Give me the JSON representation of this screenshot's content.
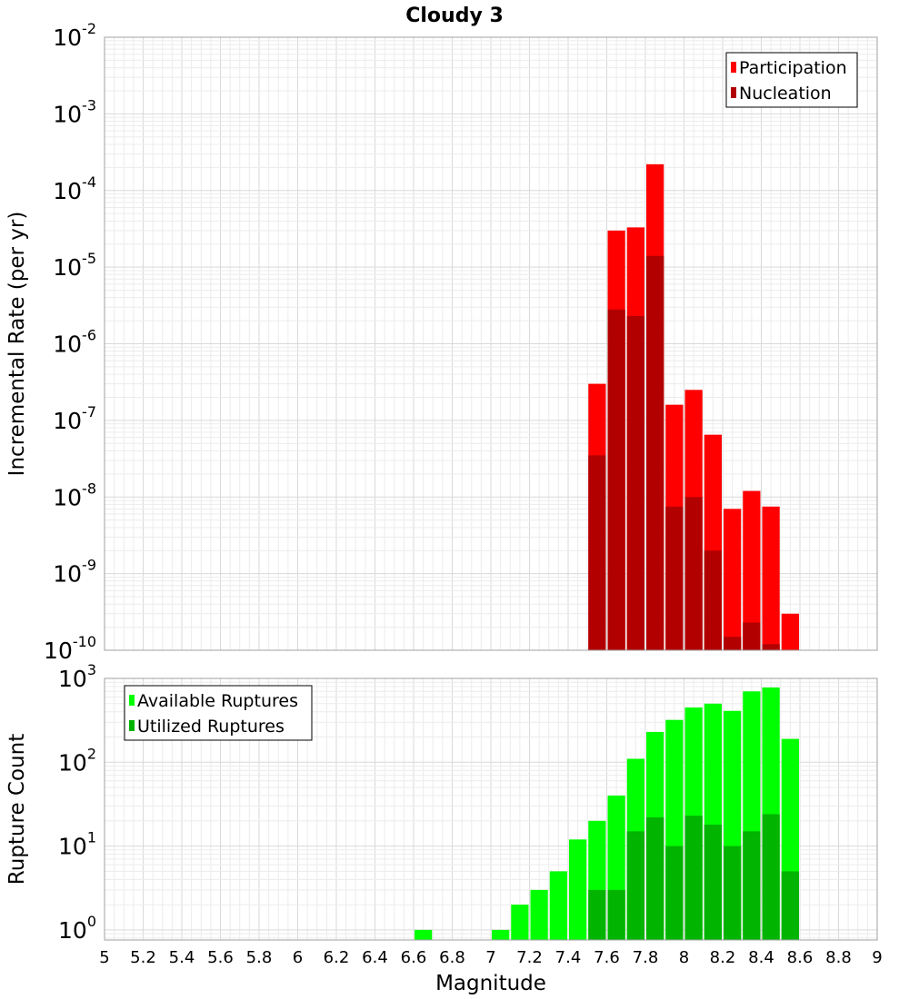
{
  "chart_data": {
    "title": "Cloudy 3",
    "xlabel": "Magnitude",
    "xlim": [
      5,
      9
    ],
    "xticks": [
      "5",
      "5.2",
      "5.4",
      "5.6",
      "5.8",
      "6",
      "6.2",
      "6.4",
      "6.6",
      "6.8",
      "7",
      "7.2",
      "7.4",
      "7.6",
      "7.8",
      "8",
      "8.2",
      "8.4",
      "8.6",
      "8.8",
      "9"
    ],
    "bin_width": 0.1,
    "grid": true,
    "panels": [
      {
        "type": "bar",
        "scale": "log",
        "ylabel": "Incremental Rate (per yr)",
        "ylim_exp": [
          -10,
          -2
        ],
        "yticks": [
          {
            "base": "10",
            "exp": "-2"
          },
          {
            "base": "10",
            "exp": "-3"
          },
          {
            "base": "10",
            "exp": "-4"
          },
          {
            "base": "10",
            "exp": "-5"
          },
          {
            "base": "10",
            "exp": "-6"
          },
          {
            "base": "10",
            "exp": "-7"
          },
          {
            "base": "10",
            "exp": "-8"
          },
          {
            "base": "10",
            "exp": "-9"
          },
          {
            "base": "10",
            "exp": "-10"
          }
        ],
        "legend_position": "top-right",
        "x": [
          7.55,
          7.65,
          7.75,
          7.85,
          7.95,
          8.05,
          8.15,
          8.25,
          8.35,
          8.45,
          8.55
        ],
        "series": [
          {
            "name": "Participation",
            "color": "#ff0000",
            "values": [
              3e-07,
              3e-05,
              3.3e-05,
              0.00022,
              1.6e-07,
              2.5e-07,
              6.5e-08,
              7e-09,
              1.2e-08,
              7.5e-09,
              3e-10
            ]
          },
          {
            "name": "Nucleation",
            "color": "#b20000",
            "values": [
              3.5e-08,
              2.8e-06,
              2.3e-06,
              1.4e-05,
              7.5e-09,
              1e-08,
              2e-09,
              1.5e-10,
              2.3e-10,
              1.2e-10,
              null
            ]
          }
        ]
      },
      {
        "type": "bar",
        "scale": "log",
        "ylabel": "Rupture Count",
        "ylim_exp": [
          -0.12,
          3
        ],
        "yticks": [
          {
            "base": "10",
            "exp": "3"
          },
          {
            "base": "10",
            "exp": "2"
          },
          {
            "base": "10",
            "exp": "1"
          },
          {
            "base": "10",
            "exp": "0"
          }
        ],
        "legend_position": "top-left",
        "x": [
          6.65,
          7.05,
          7.15,
          7.25,
          7.35,
          7.45,
          7.55,
          7.65,
          7.75,
          7.85,
          7.95,
          8.05,
          8.15,
          8.25,
          8.35,
          8.45,
          8.55
        ],
        "series": [
          {
            "name": "Available Ruptures",
            "color": "#00ff00",
            "values": [
              1,
              1,
              2,
              3,
              5,
              12,
              20,
              40,
              110,
              230,
              320,
              450,
              500,
              410,
              700,
              780,
              190
            ]
          },
          {
            "name": "Utilized Ruptures",
            "color": "#00b400",
            "values": [
              null,
              null,
              null,
              null,
              null,
              null,
              3,
              3,
              15,
              22,
              10,
              23,
              18,
              10,
              15,
              24,
              5
            ]
          }
        ]
      }
    ]
  }
}
